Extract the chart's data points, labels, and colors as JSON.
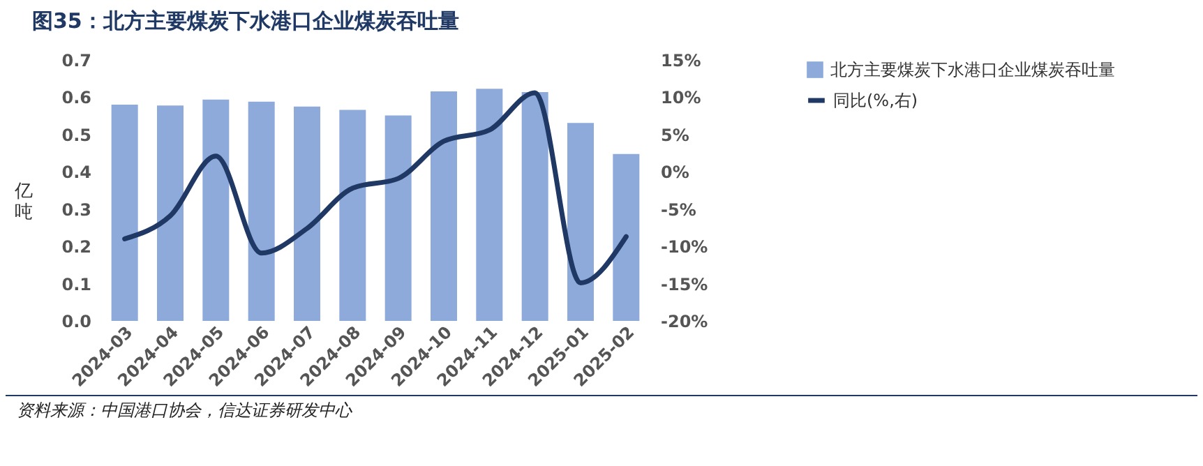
{
  "chart_data": {
    "type": "bar",
    "title": "图35：北方主要煤炭下水港口企业煤炭吞吐量",
    "categories": [
      "2024-03",
      "2024-04",
      "2024-05",
      "2024-06",
      "2024-07",
      "2024-08",
      "2024-09",
      "2024-10",
      "2024-11",
      "2024-12",
      "2025-01",
      "2025-02"
    ],
    "series": [
      {
        "name": "北方主要煤炭下水港口企业煤炭吞吐量",
        "color": "#8eaadb",
        "values": [
          0.58,
          0.578,
          0.594,
          0.588,
          0.575,
          0.566,
          0.551,
          0.616,
          0.623,
          0.614,
          0.531,
          0.448
        ]
      },
      {
        "name": "同比(%,右)",
        "type": "line",
        "axis": "y2",
        "color": "#1f3864",
        "values": [
          -9.0,
          -5.9,
          2.1,
          -10.9,
          -7.6,
          -2.2,
          -0.9,
          4.1,
          5.6,
          10.6,
          -14.9,
          -8.7
        ]
      }
    ],
    "ylabel": "亿吨",
    "ylim": [
      0,
      0.7
    ],
    "yticks": [
      {
        "value": 0,
        "label": "0.0"
      },
      0.1,
      0.2,
      0.3,
      0.4,
      0.5,
      0.6,
      0.7
    ],
    "y2lim": [
      -20,
      15
    ],
    "y2ticks": [
      {
        "value": -20,
        "label": "-20%"
      },
      {
        "value": -15,
        "label": "-15%"
      },
      {
        "value": -10,
        "label": "-10%"
      },
      {
        "value": -5,
        "label": "-5%"
      },
      {
        "value": 0,
        "label": "0%"
      },
      {
        "value": 5,
        "label": "5%"
      },
      {
        "value": 10,
        "label": "10%"
      },
      {
        "value": 15,
        "label": "15%"
      }
    ],
    "legend": "right",
    "grid": false,
    "marker": "none",
    "annotations": [
      "资料来源：中国港口协会，信达证券研发中心"
    ]
  }
}
